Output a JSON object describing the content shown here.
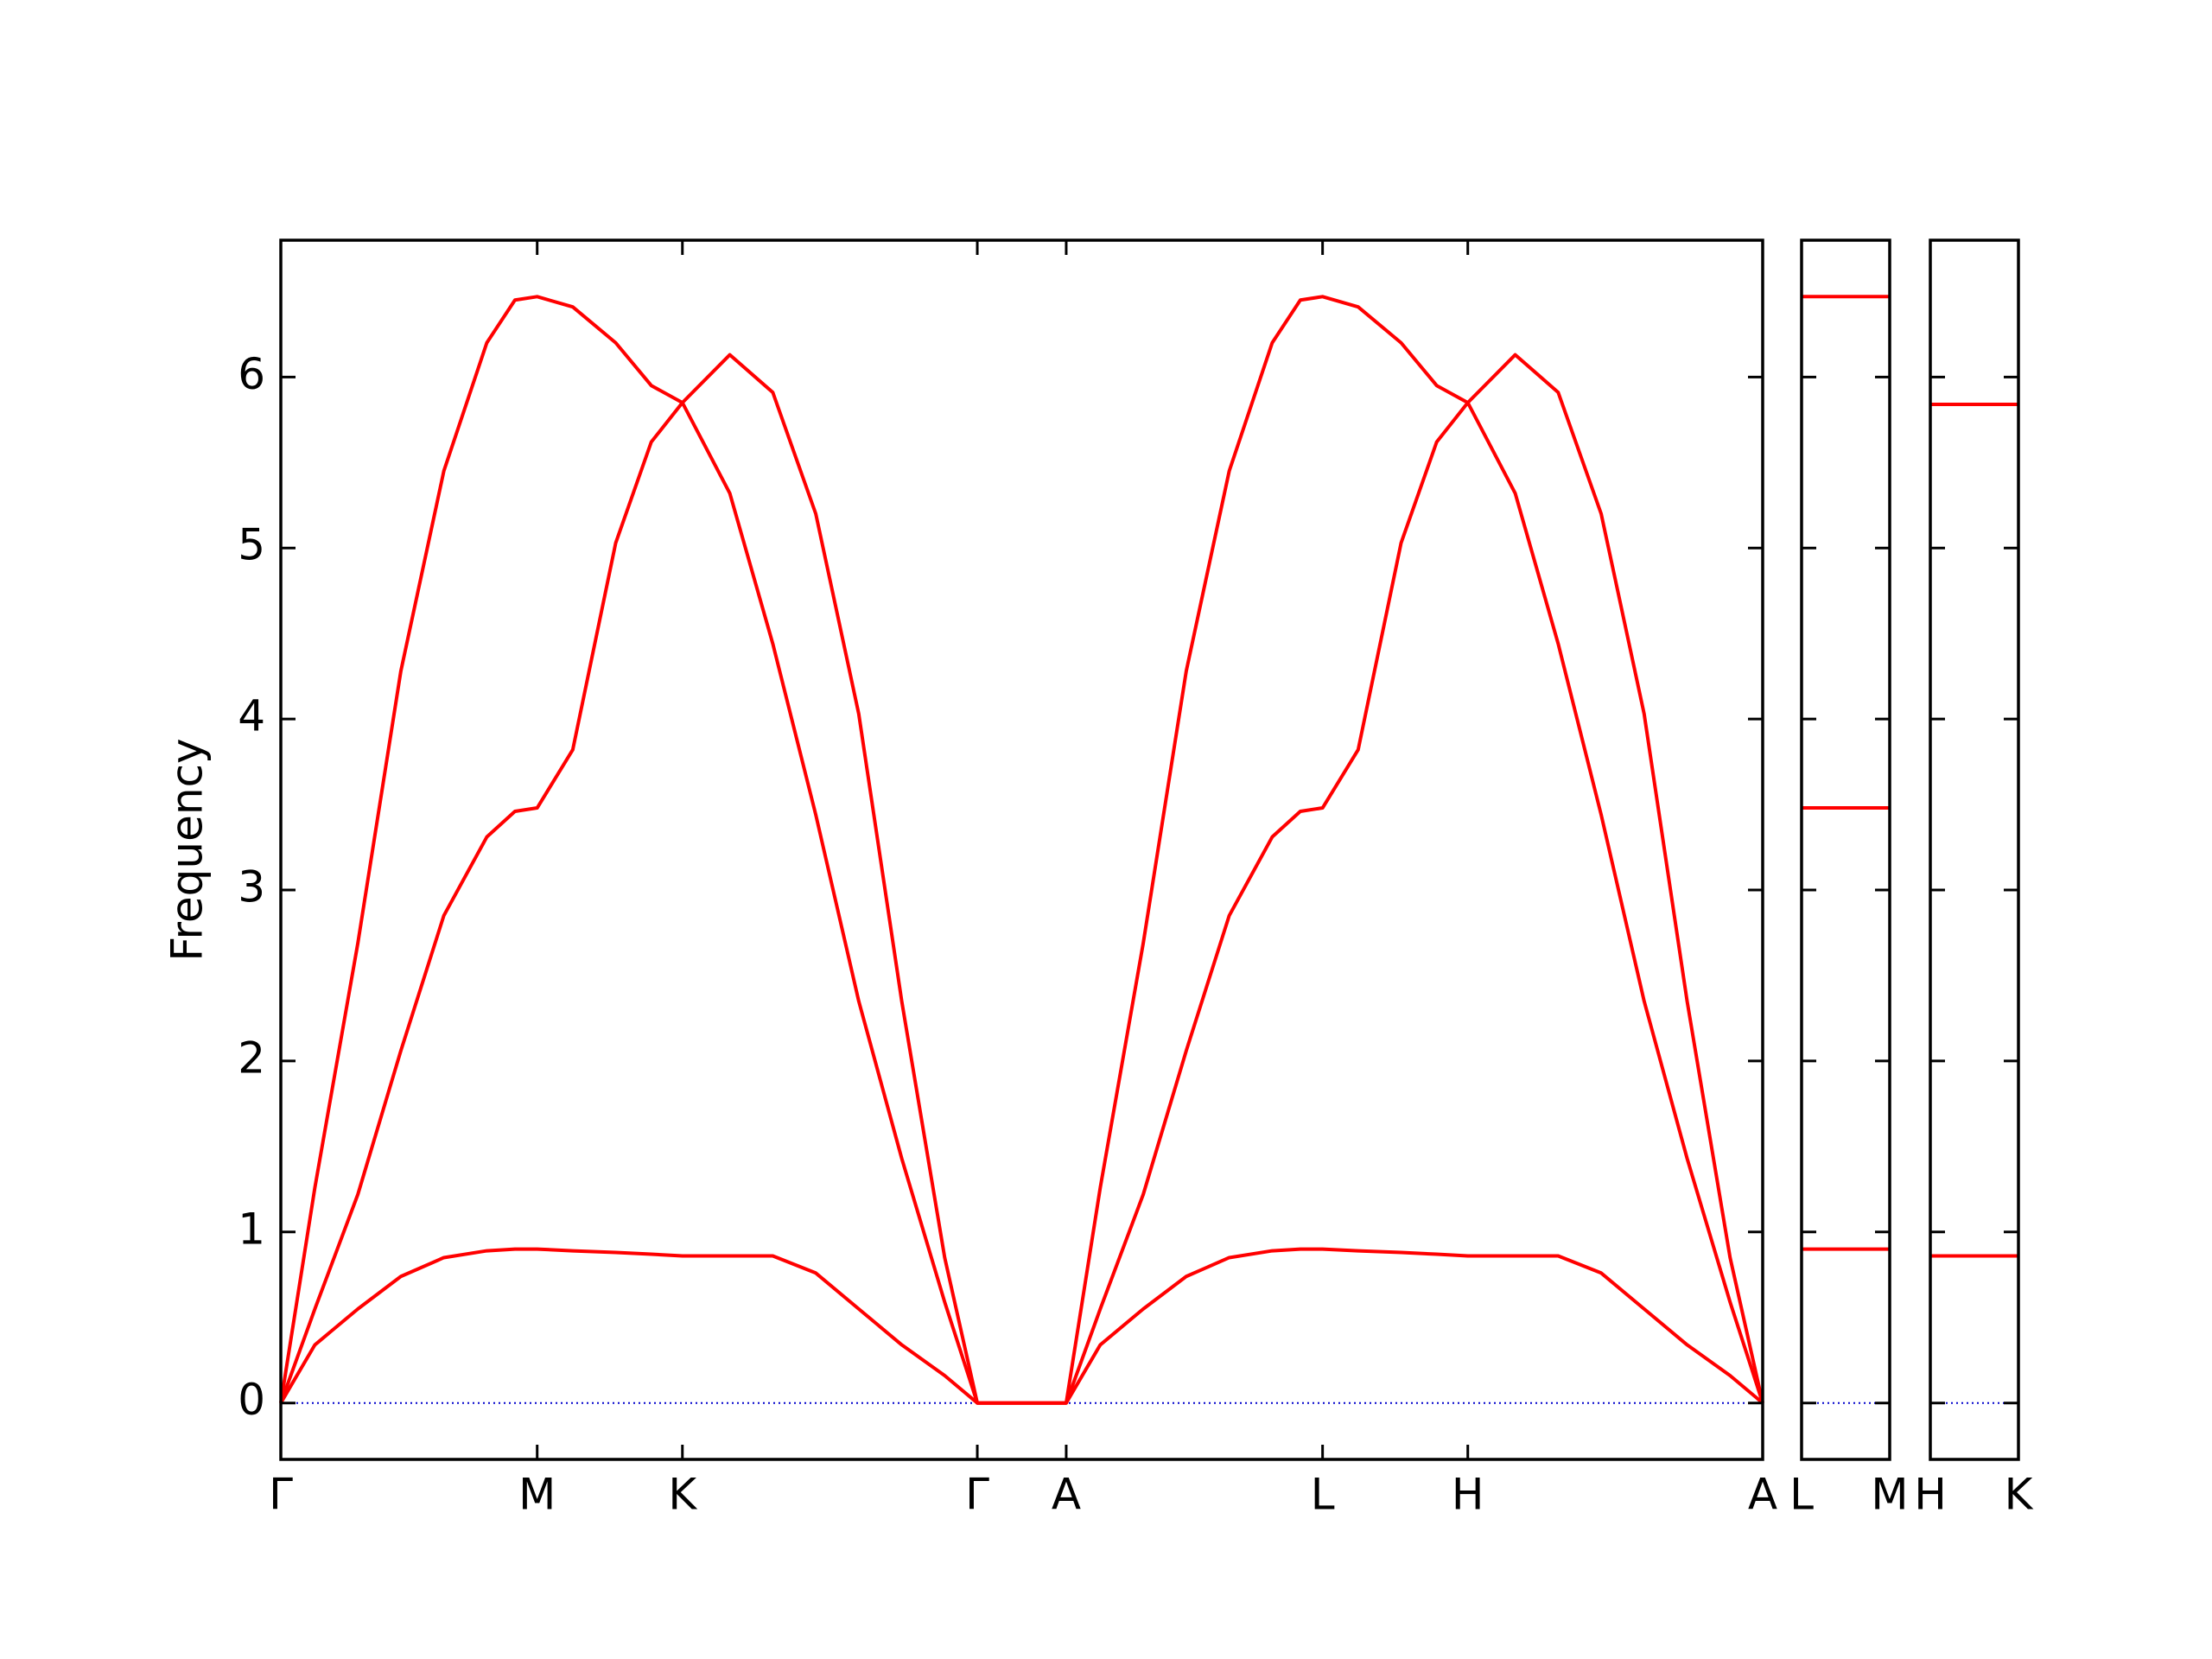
{
  "chart_data": [
    {
      "type": "line",
      "y_label": "Frequency",
      "x": [
        0,
        0.023,
        0.052,
        0.081,
        0.11,
        0.139,
        0.158,
        0.173,
        0.197,
        0.226,
        0.25,
        0.271,
        0.303,
        0.332,
        0.361,
        0.39,
        0.419,
        0.448,
        0.47,
        0.53,
        0.553,
        0.582,
        0.611,
        0.64,
        0.669,
        0.688,
        0.703,
        0.727,
        0.756,
        0.78,
        0.801,
        0.833,
        0.862,
        0.891,
        0.92,
        0.949,
        0.978,
        1
      ],
      "series": [
        {
          "color": "#ff0000",
          "values": [
            0,
            1.26,
            2.69,
            4.28,
            5.45,
            6.2,
            6.45,
            6.47,
            6.41,
            6.2,
            5.95,
            5.85,
            5.32,
            4.44,
            3.44,
            2.35,
            1.43,
            0.59,
            0,
            0,
            1.26,
            2.69,
            4.28,
            5.45,
            6.2,
            6.45,
            6.47,
            6.41,
            6.2,
            5.95,
            5.85,
            5.32,
            4.44,
            3.44,
            2.35,
            1.43,
            0.59,
            0
          ]
        },
        {
          "color": "#ff0000",
          "values": [
            0,
            0.55,
            1.22,
            2.06,
            2.85,
            3.31,
            3.46,
            3.48,
            3.82,
            5.03,
            5.62,
            5.85,
            6.13,
            5.91,
            5.2,
            4.03,
            2.35,
            0.85,
            0,
            0,
            0.55,
            1.22,
            2.06,
            2.85,
            3.31,
            3.46,
            3.48,
            3.82,
            5.03,
            5.62,
            5.85,
            6.13,
            5.91,
            5.2,
            4.03,
            2.35,
            0.85,
            0
          ]
        },
        {
          "color": "#ff0000",
          "values": [
            0,
            0.34,
            0.55,
            0.74,
            0.85,
            0.89,
            0.9,
            0.9,
            0.89,
            0.88,
            0.87,
            0.86,
            0.86,
            0.86,
            0.76,
            0.55,
            0.34,
            0.16,
            0,
            0,
            0.34,
            0.55,
            0.74,
            0.85,
            0.89,
            0.9,
            0.9,
            0.89,
            0.88,
            0.87,
            0.86,
            0.86,
            0.86,
            0.76,
            0.55,
            0.34,
            0.16,
            0
          ]
        }
      ],
      "xlim": [
        0,
        1
      ],
      "ylim": [
        -0.33,
        6.8
      ],
      "xticks": [
        {
          "value": 0,
          "label": "Γ"
        },
        {
          "value": 0.173,
          "label": "M"
        },
        {
          "value": 0.271,
          "label": "K"
        },
        {
          "value": 0.47,
          "label": "Γ"
        },
        {
          "value": 0.53,
          "label": "A"
        },
        {
          "value": 0.703,
          "label": "L"
        },
        {
          "value": 0.801,
          "label": "H"
        },
        {
          "value": 1,
          "label": "A"
        }
      ],
      "yticks": [
        0,
        1,
        2,
        3,
        4,
        5,
        6
      ],
      "ytick_labels": true,
      "hline": {
        "value": 0,
        "color": "#0000cc"
      }
    },
    {
      "type": "line",
      "x": [
        0,
        1
      ],
      "series": [
        {
          "color": "#ff0000",
          "values": [
            6.47,
            6.47
          ]
        },
        {
          "color": "#ff0000",
          "values": [
            3.48,
            3.48
          ]
        },
        {
          "color": "#ff0000",
          "values": [
            0.9,
            0.9
          ]
        }
      ],
      "xlim": [
        0,
        1
      ],
      "ylim": [
        -0.33,
        6.8
      ],
      "xticks": [
        {
          "value": 0,
          "label": "L"
        },
        {
          "value": 1,
          "label": "M"
        }
      ],
      "yticks": [
        0,
        1,
        2,
        3,
        4,
        5,
        6
      ],
      "ytick_labels": false,
      "hline": {
        "value": 0,
        "color": "#0000cc"
      }
    },
    {
      "type": "line",
      "x": [
        0,
        1
      ],
      "series": [
        {
          "color": "#ff0000",
          "values": [
            5.84,
            5.84
          ]
        },
        {
          "color": "#ff0000",
          "values": [
            0.86,
            0.86
          ]
        }
      ],
      "xlim": [
        0,
        1
      ],
      "ylim": [
        -0.33,
        6.8
      ],
      "xticks": [
        {
          "value": 0,
          "label": "H"
        },
        {
          "value": 1,
          "label": "K"
        }
      ],
      "yticks": [
        0,
        1,
        2,
        3,
        4,
        5,
        6
      ],
      "ytick_labels": false,
      "hline": {
        "value": 0,
        "color": "#0000cc"
      }
    }
  ]
}
